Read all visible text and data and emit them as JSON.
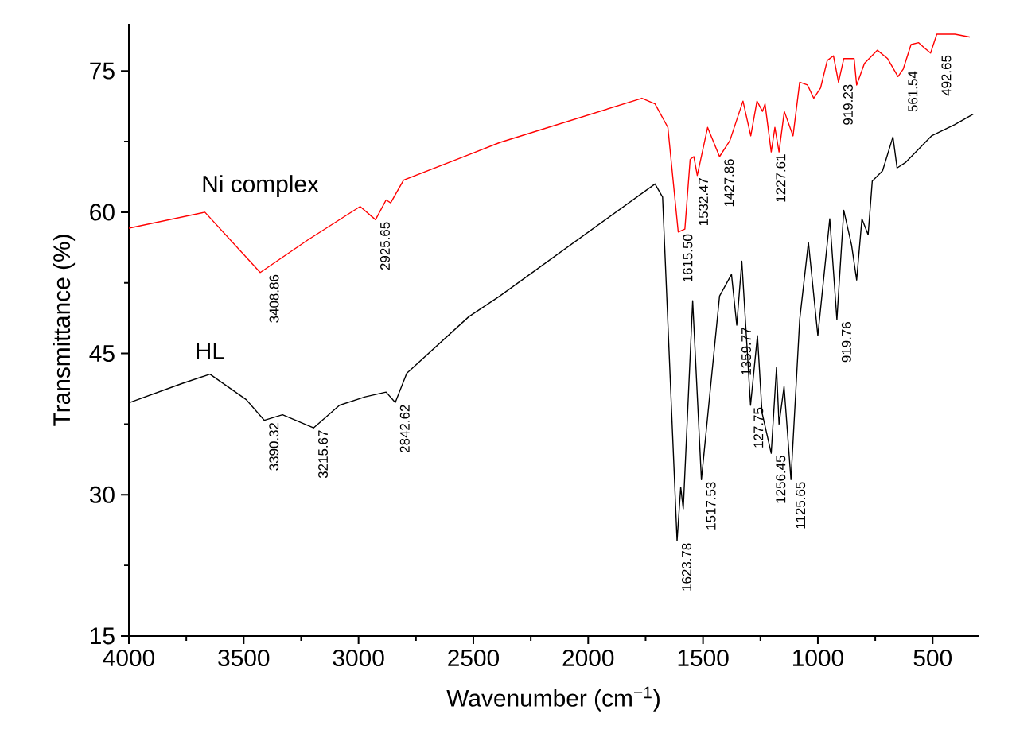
{
  "chart_data": {
    "type": "line",
    "xlabel": "Wavenumber (cm$^{−1}$)",
    "ylabel": "Transmittance (%)",
    "xlim": [
      4000,
      300
    ],
    "ylim": [
      15,
      80
    ],
    "xticks": [
      4000,
      3500,
      3000,
      2500,
      2000,
      1500,
      1000,
      500
    ],
    "yticks": [
      15,
      30,
      45,
      60,
      75
    ],
    "marker": "none",
    "line_style": "solid",
    "series": [
      {
        "name": "Ni complex",
        "color": "#ff0000",
        "x": [
          4000,
          3669,
          3428,
          3218,
          2993,
          2926,
          2880,
          2860,
          2804,
          2520,
          2385,
          1766,
          1709,
          1653,
          1608,
          1579,
          1556,
          1540,
          1525,
          1480,
          1428,
          1383,
          1326,
          1292,
          1265,
          1241,
          1230,
          1203,
          1187,
          1169,
          1146,
          1108,
          1079,
          1045,
          1018,
          988,
          959,
          932,
          910,
          887,
          842,
          831,
          797,
          741,
          696,
          651,
          628,
          594,
          561,
          539,
          509,
          482,
          403,
          340
        ],
        "values": [
          58.3,
          60.0,
          53.6,
          57.1,
          60.6,
          59.2,
          61.3,
          61.0,
          63.4,
          66.1,
          67.4,
          72.1,
          71.5,
          69.0,
          57.9,
          58.2,
          65.6,
          65.9,
          63.9,
          69.0,
          65.9,
          67.6,
          71.8,
          68.1,
          71.8,
          70.7,
          71.5,
          66.4,
          69.0,
          66.4,
          70.7,
          68.1,
          73.8,
          73.5,
          72.1,
          73.2,
          76.1,
          76.6,
          73.8,
          76.3,
          76.3,
          73.5,
          75.8,
          77.2,
          76.3,
          74.4,
          75.2,
          77.8,
          78.0,
          77.5,
          76.9,
          78.9,
          78.9,
          78.6
        ]
      },
      {
        "name": "HL",
        "color": "#000000",
        "x": [
          3995,
          3770,
          3647,
          3489,
          3410,
          3331,
          3196,
          3083,
          2971,
          2880,
          2840,
          2790,
          2520,
          2385,
          1709,
          1676,
          1613,
          1597,
          1586,
          1545,
          1507,
          1428,
          1376,
          1353,
          1331,
          1293,
          1263,
          1243,
          1203,
          1180,
          1169,
          1147,
          1117,
          1079,
          1041,
          1000,
          948,
          917,
          887,
          853,
          831,
          808,
          781,
          763,
          718,
          673,
          655,
          617,
          505,
          403,
          324
        ],
        "values": [
          39.8,
          41.8,
          42.8,
          40.1,
          37.9,
          38.5,
          37.1,
          39.5,
          40.4,
          40.9,
          39.8,
          42.9,
          48.9,
          51.1,
          63.0,
          61.6,
          25.1,
          30.8,
          28.5,
          50.6,
          31.6,
          51.1,
          53.4,
          48.0,
          54.8,
          39.5,
          46.9,
          38.7,
          34.4,
          43.5,
          37.5,
          41.5,
          31.6,
          48.6,
          56.8,
          46.9,
          59.3,
          48.6,
          60.2,
          56.5,
          52.8,
          59.3,
          57.6,
          63.3,
          64.4,
          68.0,
          64.7,
          65.3,
          68.1,
          69.3,
          70.4
        ]
      }
    ],
    "annotations": [
      {
        "text": "3408.86",
        "x": 3409,
        "y": 53.6
      },
      {
        "text": "2925.65",
        "x": 2926,
        "y": 59.2
      },
      {
        "text": "1615.50",
        "x": 1608,
        "y": 57.9
      },
      {
        "text": "1532.47",
        "x": 1540,
        "y": 63.9
      },
      {
        "text": "1427.86",
        "x": 1428,
        "y": 65.9
      },
      {
        "text": "1227.61",
        "x": 1203,
        "y": 66.4
      },
      {
        "text": "919.23",
        "x": 910,
        "y": 73.8
      },
      {
        "text": "561.54",
        "x": 628,
        "y": 75.2
      },
      {
        "text": "492.65",
        "x": 482,
        "y": 76.9
      },
      {
        "text": "3390.32",
        "x": 3410,
        "y": 37.9
      },
      {
        "text": "3215.67",
        "x": 3196,
        "y": 37.1
      },
      {
        "text": "2842.62",
        "x": 2840,
        "y": 39.8
      },
      {
        "text": "1623.78",
        "x": 1613,
        "y": 25.1
      },
      {
        "text": "1517.53",
        "x": 1507,
        "y": 31.6
      },
      {
        "text": "1359.77",
        "x": 1353,
        "y": 48.0
      },
      {
        "text": "127.75",
        "x": 1300,
        "y": 39.5
      },
      {
        "text": "1256.45",
        "x": 1203,
        "y": 34.4
      },
      {
        "text": "1125.65",
        "x": 1117,
        "y": 31.6
      },
      {
        "text": "919.76",
        "x": 917,
        "y": 48.6
      }
    ]
  }
}
